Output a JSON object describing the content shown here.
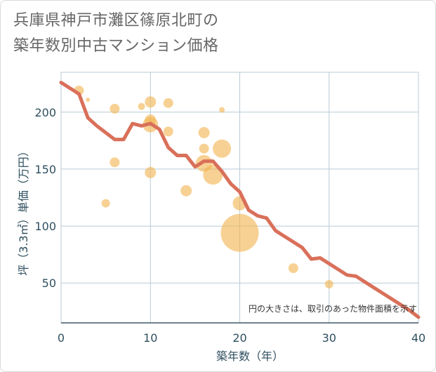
{
  "title": {
    "line1": "兵庫県神戸市灘区篠原北町の",
    "line2": "築年数別中古マンション価格"
  },
  "note": "円の大きさは、取引のあった物件面積を示す",
  "colors": {
    "line": "#d9705a",
    "bubble": "#f2b24d",
    "grid": "#b9cbd6",
    "tick_text": "#2f4f5f"
  },
  "chart_data": {
    "type": "scatter",
    "xlabel": "築年数（年）",
    "ylabel": "坪（3.3㎡）単価（万円）",
    "xlim": [
      0,
      40
    ],
    "ylim": [
      15,
      235
    ],
    "x_ticks": [
      0,
      10,
      20,
      30,
      40
    ],
    "y_ticks": [
      50,
      100,
      150,
      200
    ],
    "grid": true,
    "series": [
      {
        "kind": "line",
        "points": [
          [
            0,
            226
          ],
          [
            2,
            216
          ],
          [
            3,
            195
          ],
          [
            4,
            188
          ],
          [
            5,
            182
          ],
          [
            6,
            176
          ],
          [
            7,
            176
          ],
          [
            8,
            190
          ],
          [
            9,
            188
          ],
          [
            10,
            190
          ],
          [
            11,
            185
          ],
          [
            12,
            169
          ],
          [
            13,
            162
          ],
          [
            14,
            162
          ],
          [
            15,
            152
          ],
          [
            16,
            157
          ],
          [
            17,
            157
          ],
          [
            18,
            148
          ],
          [
            19,
            137
          ],
          [
            20,
            130
          ],
          [
            21,
            114
          ],
          [
            22,
            109
          ],
          [
            23,
            107
          ],
          [
            24,
            96
          ],
          [
            25,
            91
          ],
          [
            26,
            86
          ],
          [
            27,
            81
          ],
          [
            28,
            71
          ],
          [
            29,
            72
          ],
          [
            30,
            67
          ],
          [
            31,
            62
          ],
          [
            32,
            57
          ],
          [
            33,
            56
          ],
          [
            34,
            51
          ],
          [
            35,
            46
          ],
          [
            36,
            41
          ],
          [
            37,
            36
          ],
          [
            38,
            31
          ],
          [
            39,
            26
          ],
          [
            40,
            20
          ]
        ]
      },
      {
        "kind": "bubble",
        "points": [
          {
            "x": 2,
            "y": 219,
            "size": 7
          },
          {
            "x": 3,
            "y": 211,
            "size": 3
          },
          {
            "x": 5,
            "y": 120,
            "size": 6
          },
          {
            "x": 6,
            "y": 203,
            "size": 7
          },
          {
            "x": 6,
            "y": 156,
            "size": 7
          },
          {
            "x": 9,
            "y": 205,
            "size": 5
          },
          {
            "x": 10,
            "y": 209,
            "size": 8
          },
          {
            "x": 10,
            "y": 193,
            "size": 8
          },
          {
            "x": 10,
            "y": 189,
            "size": 11
          },
          {
            "x": 10,
            "y": 147,
            "size": 8
          },
          {
            "x": 12,
            "y": 208,
            "size": 7
          },
          {
            "x": 12,
            "y": 183,
            "size": 7
          },
          {
            "x": 14,
            "y": 131,
            "size": 8
          },
          {
            "x": 16,
            "y": 182,
            "size": 8
          },
          {
            "x": 16,
            "y": 168,
            "size": 7
          },
          {
            "x": 16,
            "y": 155,
            "size": 12
          },
          {
            "x": 17,
            "y": 145,
            "size": 14
          },
          {
            "x": 18,
            "y": 202,
            "size": 4
          },
          {
            "x": 18,
            "y": 168,
            "size": 13
          },
          {
            "x": 20,
            "y": 120,
            "size": 10
          },
          {
            "x": 20,
            "y": 94,
            "size": 27
          },
          {
            "x": 26,
            "y": 63,
            "size": 7
          },
          {
            "x": 30,
            "y": 49,
            "size": 6
          }
        ]
      }
    ]
  }
}
